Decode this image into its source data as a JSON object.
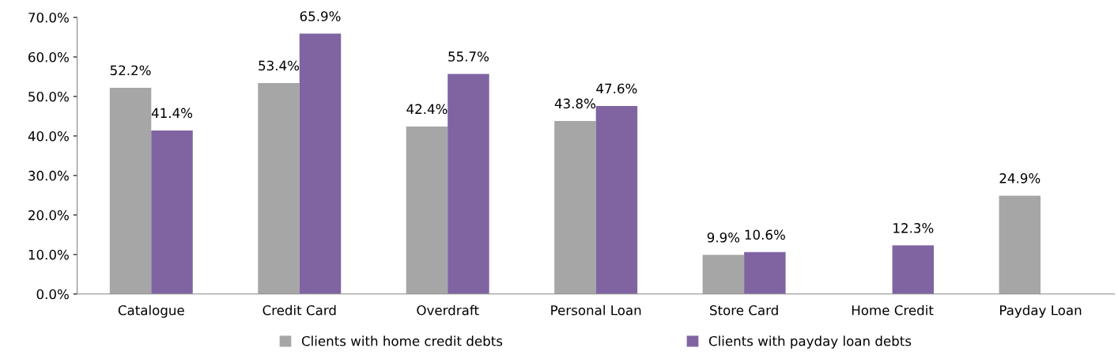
{
  "chart_data": {
    "type": "bar",
    "categories": [
      "Catalogue",
      "Credit Card",
      "Overdraft",
      "Personal Loan",
      "Store Card",
      "Home Credit",
      "Payday Loan"
    ],
    "series": [
      {
        "name": "Clients with home credit debts",
        "color": "#a6a6a6",
        "values": [
          52.2,
          53.4,
          42.4,
          43.8,
          9.9,
          null,
          24.9
        ],
        "value_labels": [
          "52.2%",
          "53.4%",
          "42.4%",
          "43.8%",
          "9.9%",
          null,
          "24.9%"
        ]
      },
      {
        "name": "Clients with payday loan debts",
        "color": "#8064a2",
        "values": [
          41.4,
          65.9,
          55.7,
          47.6,
          10.6,
          12.3,
          null
        ],
        "value_labels": [
          "41.4%",
          "65.9%",
          "55.7%",
          "47.6%",
          "10.6%",
          "12.3%",
          null
        ]
      }
    ],
    "ylim": [
      0,
      70
    ],
    "yticks": [
      {
        "value": 0,
        "label": "0.0%"
      },
      {
        "value": 10,
        "label": "10.0%"
      },
      {
        "value": 20,
        "label": "20.0%"
      },
      {
        "value": 30,
        "label": "30.0%"
      },
      {
        "value": 40,
        "label": "40.0%"
      },
      {
        "value": 50,
        "label": "50.0%"
      },
      {
        "value": 60,
        "label": "60.0%"
      },
      {
        "value": 70,
        "label": "70.0%"
      }
    ],
    "grid": false,
    "legend": "bottom"
  }
}
